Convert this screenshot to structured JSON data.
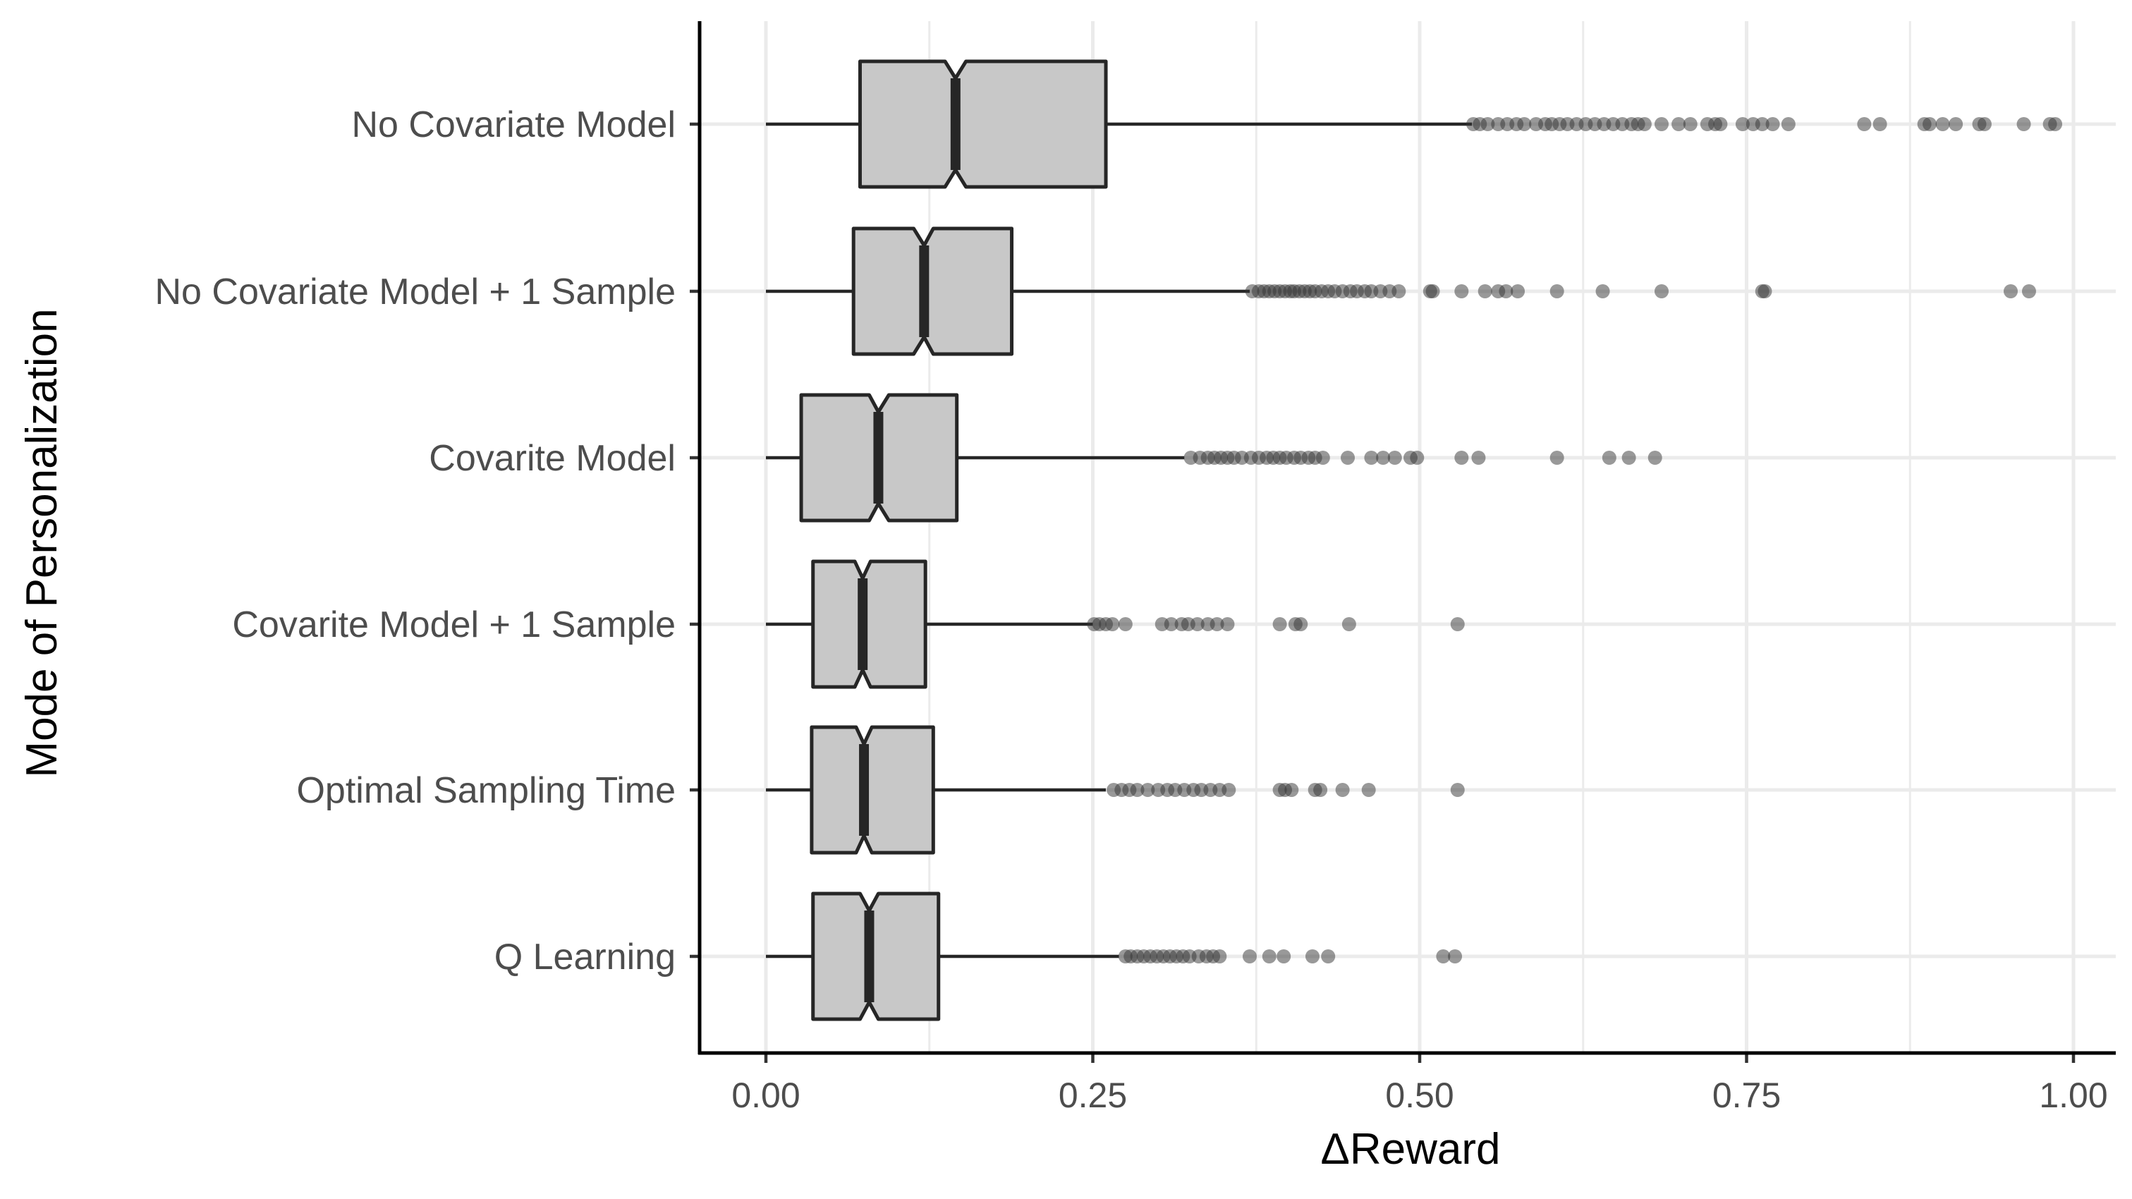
{
  "chart_data": {
    "type": "boxplot",
    "orientation": "horizontal",
    "notched": true,
    "xlabel": "ΔReward",
    "ylabel": "Mode of Personalization",
    "xlim": [
      -0.05,
      1.02
    ],
    "x_ticks": [
      0.0,
      0.25,
      0.5,
      0.75,
      1.0
    ],
    "x_tick_labels": [
      "0.00",
      "0.25",
      "0.50",
      "0.75",
      "1.00"
    ],
    "grid": "major, light grey",
    "colors": {
      "box_fill": "#c8c8c8",
      "box_stroke": "#262626",
      "outlier": "#333333",
      "grid": "#ebebeb"
    },
    "categories": [
      "No Covariate Model",
      "No Covariate Model + 1 Sample",
      "Covarite Model",
      "Covarite Model + 1 Sample",
      "Optimal Sampling Time",
      "Q Learning"
    ],
    "series": [
      {
        "category": "No Covariate Model",
        "whisker_low": 0.0,
        "q1": 0.072,
        "median": 0.145,
        "q3": 0.26,
        "whisker_high": 0.54,
        "notch_low": 0.137,
        "notch_high": 0.153,
        "outliers": [
          0.541,
          0.546,
          0.552,
          0.56,
          0.567,
          0.574,
          0.58,
          0.589,
          0.596,
          0.601,
          0.607,
          0.613,
          0.62,
          0.627,
          0.634,
          0.641,
          0.648,
          0.655,
          0.662,
          0.667,
          0.672,
          0.685,
          0.698,
          0.707,
          0.72,
          0.726,
          0.73,
          0.747,
          0.755,
          0.762,
          0.77,
          0.782,
          0.84,
          0.852,
          0.886,
          0.89,
          0.9,
          0.91,
          0.928,
          0.932,
          0.962,
          0.982,
          0.986
        ]
      },
      {
        "category": "No Covariate Model + 1 Sample",
        "whisker_low": 0.0,
        "q1": 0.067,
        "median": 0.121,
        "q3": 0.188,
        "whisker_high": 0.37,
        "notch_low": 0.113,
        "notch_high": 0.128,
        "outliers": [
          0.372,
          0.377,
          0.381,
          0.385,
          0.389,
          0.393,
          0.397,
          0.401,
          0.404,
          0.408,
          0.412,
          0.416,
          0.42,
          0.425,
          0.43,
          0.435,
          0.441,
          0.447,
          0.452,
          0.458,
          0.463,
          0.47,
          0.477,
          0.484,
          0.508,
          0.51,
          0.532,
          0.55,
          0.56,
          0.566,
          0.575,
          0.605,
          0.64,
          0.685,
          0.762,
          0.764,
          0.952,
          0.966
        ]
      },
      {
        "category": "Covarite Model",
        "whisker_low": 0.0,
        "q1": 0.027,
        "median": 0.086,
        "q3": 0.146,
        "whisker_high": 0.32,
        "notch_low": 0.079,
        "notch_high": 0.094,
        "outliers": [
          0.325,
          0.332,
          0.338,
          0.343,
          0.348,
          0.353,
          0.358,
          0.364,
          0.371,
          0.377,
          0.383,
          0.388,
          0.393,
          0.398,
          0.404,
          0.409,
          0.415,
          0.42,
          0.426,
          0.445,
          0.463,
          0.472,
          0.481,
          0.493,
          0.498,
          0.532,
          0.545,
          0.605,
          0.645,
          0.66,
          0.68
        ]
      },
      {
        "category": "Covarite Model + 1 Sample",
        "whisker_low": 0.0,
        "q1": 0.036,
        "median": 0.074,
        "q3": 0.122,
        "whisker_high": 0.25,
        "notch_low": 0.068,
        "notch_high": 0.08,
        "outliers": [
          0.251,
          0.255,
          0.26,
          0.265,
          0.275,
          0.303,
          0.31,
          0.318,
          0.323,
          0.33,
          0.338,
          0.345,
          0.353,
          0.393,
          0.405,
          0.409,
          0.446,
          0.529
        ]
      },
      {
        "category": "Optimal Sampling Time",
        "whisker_low": 0.0,
        "q1": 0.035,
        "median": 0.075,
        "q3": 0.128,
        "whisker_high": 0.26,
        "notch_low": 0.069,
        "notch_high": 0.081,
        "outliers": [
          0.266,
          0.272,
          0.278,
          0.284,
          0.292,
          0.3,
          0.307,
          0.313,
          0.32,
          0.327,
          0.333,
          0.34,
          0.347,
          0.354,
          0.393,
          0.397,
          0.402,
          0.42,
          0.424,
          0.441,
          0.461,
          0.529
        ]
      },
      {
        "category": "Q Learning",
        "whisker_low": 0.0,
        "q1": 0.036,
        "median": 0.079,
        "q3": 0.132,
        "whisker_high": 0.27,
        "notch_low": 0.072,
        "notch_high": 0.086,
        "outliers": [
          0.275,
          0.279,
          0.284,
          0.289,
          0.294,
          0.299,
          0.304,
          0.309,
          0.314,
          0.319,
          0.324,
          0.331,
          0.337,
          0.342,
          0.347,
          0.37,
          0.385,
          0.396,
          0.418,
          0.43,
          0.518,
          0.527
        ]
      }
    ]
  }
}
